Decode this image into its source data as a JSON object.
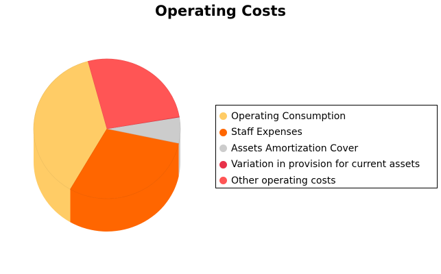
{
  "chart_data": {
    "type": "pie",
    "style": "3d-cylinder",
    "title": "Operating Costs",
    "legend_position": "right",
    "slices": [
      {
        "label": "Operating Consumption",
        "value": 37.5,
        "color": "#ffcc66"
      },
      {
        "label": "Staff Expenses",
        "value": 30.0,
        "color": "#ff6600"
      },
      {
        "label": "Assets Amortization Cover",
        "value": 6.0,
        "color": "#cccccc"
      },
      {
        "label": "Variation in provision for current assets",
        "value": 0.1,
        "color": "#e8324a"
      },
      {
        "label": "Other operating costs",
        "value": 26.4,
        "color": "#ff5555"
      }
    ]
  }
}
